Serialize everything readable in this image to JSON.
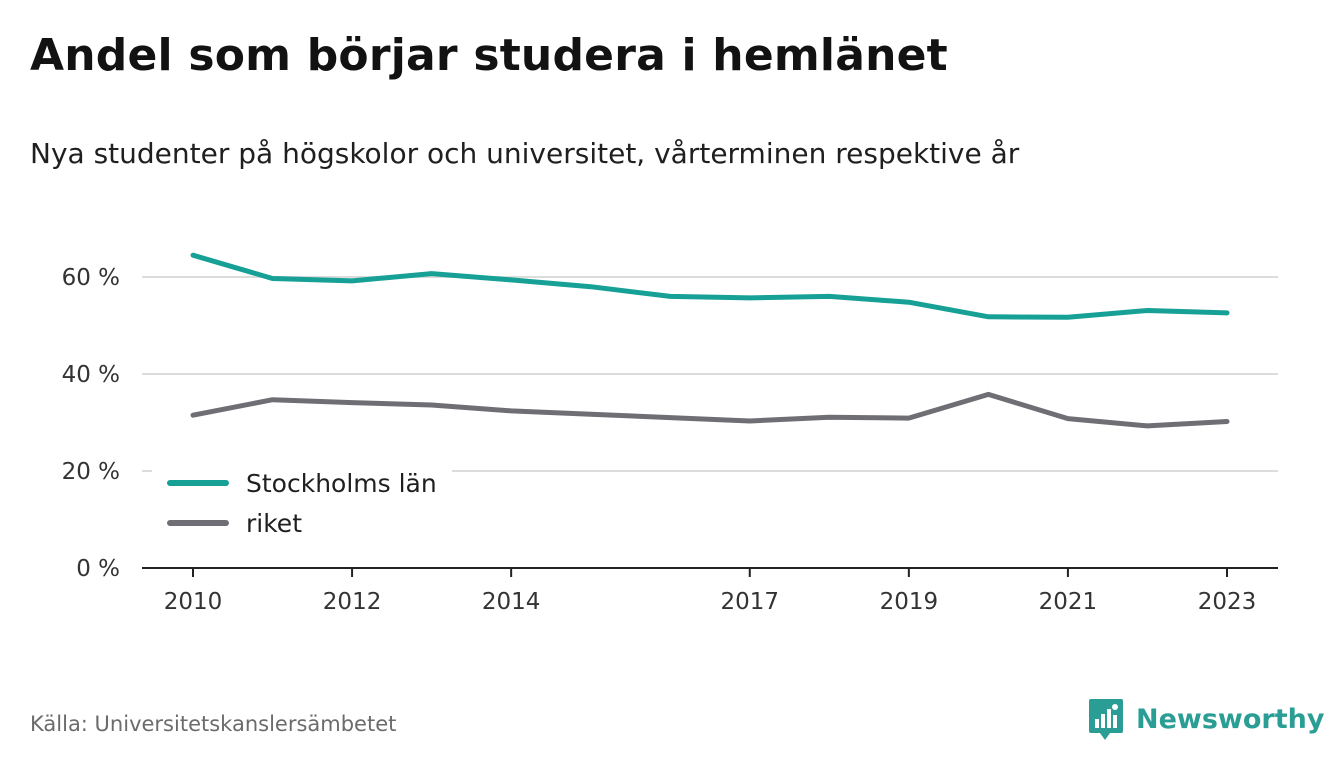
{
  "title": "Andel som börjar studera i hemlänet",
  "subtitle": "Nya studenter på högskolor och universitet, vårterminen respektive år",
  "source": "Källa: Universitetskanslersämbetet",
  "brand": "Newsworthy",
  "chart_data": {
    "type": "line",
    "x": [
      2010,
      2011,
      2012,
      2013,
      2014,
      2015,
      2016,
      2017,
      2018,
      2019,
      2020,
      2021,
      2022,
      2023
    ],
    "x_ticks": [
      2010,
      2012,
      2014,
      2017,
      2019,
      2021,
      2023
    ],
    "y_ticks": [
      0,
      20,
      40,
      60
    ],
    "y_tick_labels": [
      "0 %",
      "20 %",
      "40 %",
      "60 %"
    ],
    "ylim": [
      0,
      70
    ],
    "grid": true,
    "legend_position": "bottom-left",
    "series": [
      {
        "name": "Stockholms län",
        "color": "#16a096",
        "values": [
          64.5,
          59.7,
          59.2,
          60.7,
          59.4,
          58.0,
          56.0,
          55.7,
          56.0,
          54.8,
          51.8,
          51.7,
          53.1,
          52.6
        ]
      },
      {
        "name": "riket",
        "color": "#6f6e74",
        "values": [
          31.5,
          34.7,
          34.1,
          33.6,
          32.4,
          31.7,
          31.0,
          30.3,
          31.1,
          30.9,
          35.8,
          30.8,
          29.3,
          30.2
        ]
      }
    ]
  }
}
